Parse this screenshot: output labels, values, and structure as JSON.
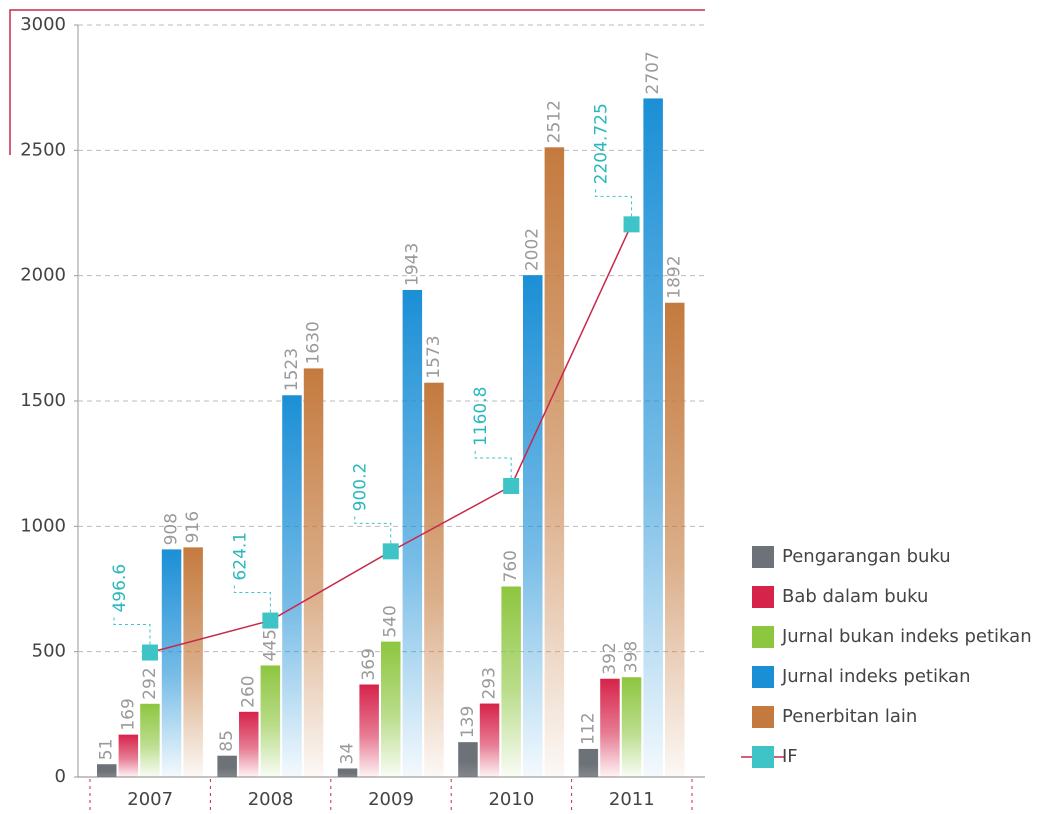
{
  "chart_data": {
    "type": "bar",
    "categories": [
      "2007",
      "2008",
      "2009",
      "2010",
      "2011"
    ],
    "series": [
      {
        "name": "Pengarangan buku",
        "color": "#6d7278",
        "values": [
          51,
          85,
          34,
          139,
          112
        ]
      },
      {
        "name": "Bab dalam buku",
        "color": "#d6234a",
        "values": [
          169,
          260,
          369,
          293,
          392
        ]
      },
      {
        "name": "Jurnal bukan indeks petikan",
        "color": "#8dc63f",
        "values": [
          292,
          445,
          540,
          760,
          398
        ]
      },
      {
        "name": "Jurnal indeks petikan",
        "color": "#1b8fd6",
        "values": [
          908,
          1523,
          1943,
          2002,
          2707
        ]
      },
      {
        "name": "Penerbitan lain",
        "color": "#c47a3e",
        "values": [
          916,
          1630,
          1573,
          2512,
          1892
        ]
      },
      {
        "name": "IF",
        "type": "line",
        "color": "#3ec3c6",
        "line_color": "#c8284a",
        "values": [
          496.6,
          624.1,
          900.2,
          1160.8,
          2204.725
        ]
      }
    ],
    "ylim": [
      0,
      3000
    ],
    "yticks": [
      0,
      500,
      1000,
      1500,
      2000,
      2500,
      3000
    ],
    "grid": true,
    "legend": "right"
  }
}
